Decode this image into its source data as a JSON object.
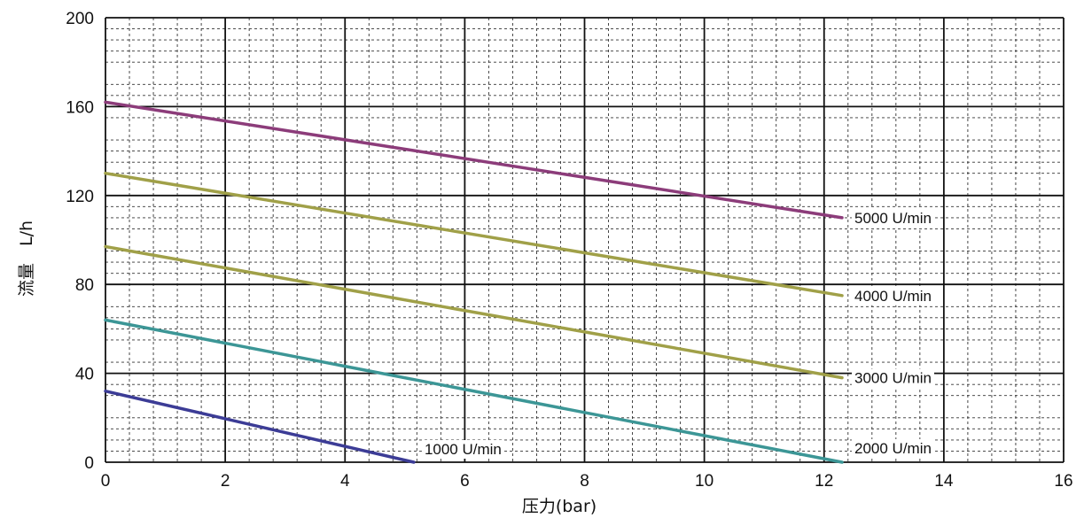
{
  "chart_data": {
    "type": "line",
    "xlabel": "压力(bar)",
    "ylabel": "流量　L/h",
    "xlim": [
      0,
      16
    ],
    "ylim": [
      0,
      200
    ],
    "x_ticks": [
      "0",
      "2",
      "4",
      "6",
      "8",
      "10",
      "12",
      "14",
      "16"
    ],
    "y_ticks": [
      "0",
      "40",
      "80",
      "120",
      "160",
      "200"
    ],
    "grid": true,
    "series": [
      {
        "name": "1000 U/min",
        "color": "#3c3c96",
        "points": [
          [
            0,
            32
          ],
          [
            5.15,
            0
          ]
        ]
      },
      {
        "name": "2000 U/min",
        "color": "#3c9696",
        "points": [
          [
            0,
            64
          ],
          [
            12.3,
            0
          ]
        ]
      },
      {
        "name": "3000 U/min",
        "color": "#a0a048",
        "points": [
          [
            0,
            97
          ],
          [
            12.3,
            38
          ]
        ]
      },
      {
        "name": "4000 U/min",
        "color": "#a0a048",
        "points": [
          [
            0,
            130
          ],
          [
            12.3,
            75
          ]
        ]
      },
      {
        "name": "5000 U/min",
        "color": "#8c3c7a",
        "points": [
          [
            0,
            162
          ],
          [
            12.3,
            110
          ]
        ]
      }
    ]
  }
}
